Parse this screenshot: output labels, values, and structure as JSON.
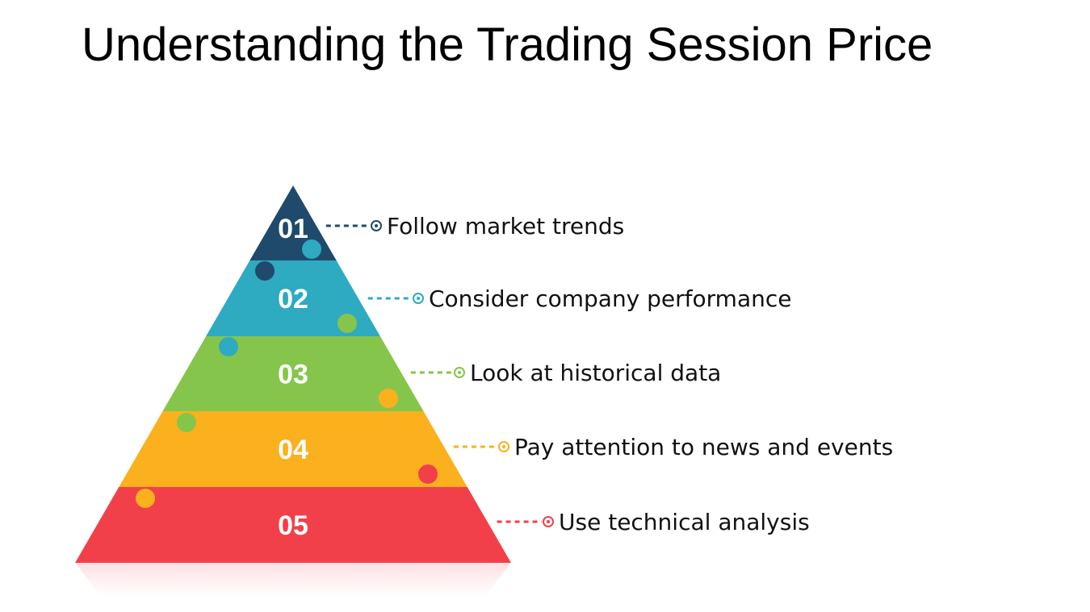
{
  "title": "Understanding the Trading Session Price",
  "steps": [
    {
      "number": "01",
      "label": "Follow market trends",
      "color": "#1f4a6b"
    },
    {
      "number": "02",
      "label": "Consider company performance",
      "color": "#2eaac1"
    },
    {
      "number": "03",
      "label": "Look at historical data",
      "color": "#86c54b"
    },
    {
      "number": "04",
      "label": "Pay attention to news and events",
      "color": "#fbb01e"
    },
    {
      "number": "05",
      "label": "Use technical analysis",
      "color": "#f2404a"
    }
  ]
}
